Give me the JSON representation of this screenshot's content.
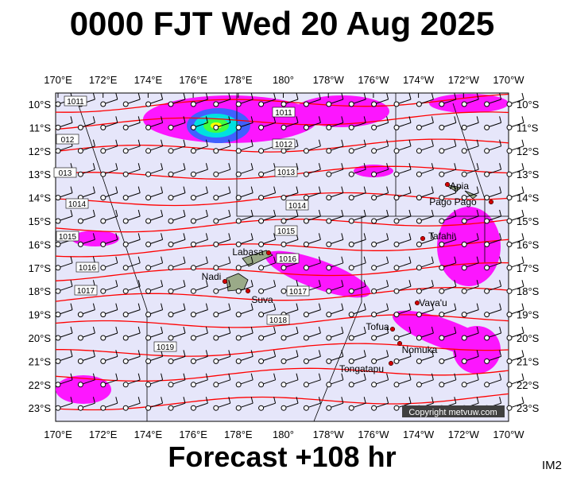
{
  "title": "0000 FJT Wed 20 Aug 2025",
  "footer": "Forecast +108 hr",
  "corner": "IM2",
  "copyright": "Copyright metvuw.com",
  "lon_labels": [
    "170°E",
    "172°E",
    "174°E",
    "176°E",
    "178°E",
    "180°",
    "178°W",
    "176°W",
    "174°W",
    "172°W",
    "170°W"
  ],
  "lat_labels": [
    "10°S",
    "11°S",
    "12°S",
    "13°S",
    "14°S",
    "15°S",
    "16°S",
    "17°S",
    "18°S",
    "19°S",
    "20°S",
    "21°S",
    "22°S",
    "23°S"
  ],
  "isobar_labels": [
    "1011",
    "1011",
    "012",
    "1012",
    "013",
    "1013",
    "1014",
    "1014",
    "1015",
    "1015",
    "1016",
    "1016",
    "1017",
    "1017",
    "1018",
    "1019"
  ],
  "places": [
    "Apia",
    "Pago Pago",
    "Tafahi",
    "Labasa",
    "Nadi",
    "Suva",
    "Vava'u",
    "Tofua",
    "Nomuka",
    "Tongatapu"
  ]
}
